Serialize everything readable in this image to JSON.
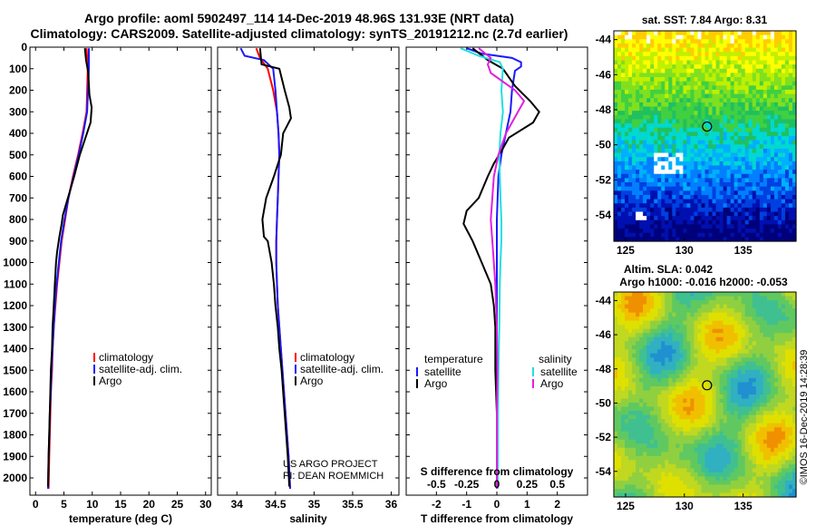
{
  "header": {
    "line1": "Argo profile: aoml 5902497_114 14-Dec-2019 48.96S 131.93E (NRT data)",
    "line2": "Climatology: CARS2009. Satellite-adjusted climatology: synTS_20191212.nc (2.7d earlier)"
  },
  "credit": {
    "line1": "US ARGO PROJECT",
    "line2": "PI: DEAN ROEMMICH",
    "watermark": "©IMOS 16-Dec-2019 14:28:39"
  },
  "colors": {
    "climatology": "#ff0000",
    "satellite": "#1a1aff",
    "argo": "#000000",
    "salinity_argo": "#e020e0",
    "salinity_sat": "#20e0e0"
  },
  "chart_data": [
    {
      "type": "line",
      "name": "temperature-panel",
      "xlabel": "temperature (deg C)",
      "xlim": [
        -1,
        31
      ],
      "ylim": [
        0,
        2080
      ],
      "y_reversed": true,
      "xticks": [
        0,
        5,
        10,
        15,
        20,
        25,
        30
      ],
      "yticks": [
        0,
        100,
        200,
        300,
        400,
        500,
        600,
        700,
        800,
        900,
        1000,
        1100,
        1200,
        1300,
        1400,
        1500,
        1600,
        1700,
        1800,
        1900,
        2000
      ],
      "legend": [
        "climatology",
        "satellite-adj. clim.",
        "Argo"
      ],
      "series": [
        {
          "name": "climatology",
          "color": "#ff0000",
          "points": [
            [
              9.0,
              5
            ],
            [
              9.2,
              100
            ],
            [
              9.0,
              300
            ],
            [
              8.3,
              400
            ],
            [
              7.5,
              500
            ],
            [
              6.6,
              600
            ],
            [
              5.8,
              700
            ],
            [
              5.2,
              800
            ],
            [
              4.6,
              900
            ],
            [
              4.2,
              1000
            ],
            [
              3.8,
              1100
            ],
            [
              3.5,
              1200
            ],
            [
              3.2,
              1300
            ],
            [
              3.0,
              1400
            ],
            [
              2.9,
              1500
            ],
            [
              2.7,
              1600
            ],
            [
              2.6,
              1700
            ],
            [
              2.5,
              1800
            ],
            [
              2.4,
              1900
            ],
            [
              2.3,
              2050
            ]
          ]
        },
        {
          "name": "satellite-adj. clim.",
          "color": "#1a1aff",
          "points": [
            [
              9.4,
              5
            ],
            [
              9.4,
              100
            ],
            [
              9.1,
              300
            ],
            [
              8.4,
              400
            ],
            [
              7.6,
              500
            ],
            [
              6.7,
              600
            ],
            [
              5.8,
              700
            ],
            [
              5.1,
              800
            ],
            [
              4.5,
              900
            ],
            [
              4.1,
              1000
            ],
            [
              3.7,
              1100
            ],
            [
              3.4,
              1200
            ],
            [
              3.2,
              1300
            ],
            [
              3.0,
              1400
            ],
            [
              2.8,
              1500
            ],
            [
              2.7,
              1600
            ],
            [
              2.5,
              1700
            ],
            [
              2.4,
              1800
            ],
            [
              2.3,
              1900
            ],
            [
              2.2,
              2050
            ]
          ]
        },
        {
          "name": "Argo",
          "color": "#000000",
          "points": [
            [
              8.7,
              5
            ],
            [
              8.9,
              60
            ],
            [
              9.3,
              120
            ],
            [
              9.5,
              220
            ],
            [
              9.9,
              280
            ],
            [
              9.7,
              350
            ],
            [
              8.8,
              420
            ],
            [
              7.8,
              500
            ],
            [
              6.8,
              600
            ],
            [
              5.7,
              700
            ],
            [
              4.8,
              780
            ],
            [
              4.6,
              820
            ],
            [
              4.2,
              880
            ],
            [
              3.8,
              950
            ],
            [
              3.6,
              1000
            ],
            [
              3.4,
              1100
            ],
            [
              3.2,
              1200
            ],
            [
              3.0,
              1300
            ],
            [
              2.9,
              1400
            ],
            [
              2.7,
              1500
            ],
            [
              2.6,
              1600
            ],
            [
              2.5,
              1700
            ],
            [
              2.4,
              1800
            ],
            [
              2.3,
              1900
            ],
            [
              2.2,
              2040
            ]
          ]
        }
      ]
    },
    {
      "type": "line",
      "name": "salinity-panel",
      "xlabel": "salinity",
      "xlim": [
        33.75,
        36.1
      ],
      "ylim": [
        0,
        2080
      ],
      "y_reversed": true,
      "xticks": [
        34,
        34.5,
        35,
        35.5,
        36
      ],
      "legend": [
        "climatology",
        "satellite-adj. clim.",
        "Argo"
      ],
      "series": [
        {
          "name": "climatology",
          "color": "#ff0000",
          "points": [
            [
              34.25,
              5
            ],
            [
              34.3,
              50
            ],
            [
              34.4,
              100
            ],
            [
              34.47,
              200
            ],
            [
              34.52,
              300
            ],
            [
              34.54,
              400
            ],
            [
              34.55,
              500
            ],
            [
              34.54,
              600
            ],
            [
              34.53,
              700
            ],
            [
              34.52,
              800
            ],
            [
              34.51,
              900
            ],
            [
              34.51,
              1000
            ],
            [
              34.52,
              1100
            ],
            [
              34.53,
              1200
            ],
            [
              34.55,
              1300
            ],
            [
              34.57,
              1400
            ],
            [
              34.59,
              1500
            ],
            [
              34.61,
              1600
            ],
            [
              34.63,
              1700
            ],
            [
              34.65,
              1800
            ],
            [
              34.67,
              1900
            ],
            [
              34.69,
              2050
            ]
          ]
        },
        {
          "name": "satellite-adj. clim.",
          "color": "#1a1aff",
          "points": [
            [
              34.05,
              5
            ],
            [
              34.1,
              40
            ],
            [
              34.35,
              60
            ],
            [
              34.47,
              100
            ],
            [
              34.5,
              200
            ],
            [
              34.52,
              300
            ],
            [
              34.54,
              400
            ],
            [
              34.55,
              500
            ],
            [
              34.54,
              600
            ],
            [
              34.53,
              700
            ],
            [
              34.52,
              800
            ],
            [
              34.51,
              900
            ],
            [
              34.51,
              1000
            ],
            [
              34.52,
              1100
            ],
            [
              34.53,
              1200
            ],
            [
              34.55,
              1300
            ],
            [
              34.57,
              1400
            ],
            [
              34.59,
              1500
            ],
            [
              34.61,
              1600
            ],
            [
              34.63,
              1700
            ],
            [
              34.65,
              1800
            ],
            [
              34.67,
              1900
            ],
            [
              34.69,
              2050
            ]
          ]
        },
        {
          "name": "Argo",
          "color": "#000000",
          "points": [
            [
              34.3,
              5
            ],
            [
              34.32,
              80
            ],
            [
              34.55,
              100
            ],
            [
              34.62,
              200
            ],
            [
              34.68,
              280
            ],
            [
              34.7,
              330
            ],
            [
              34.6,
              400
            ],
            [
              34.57,
              500
            ],
            [
              34.48,
              600
            ],
            [
              34.38,
              700
            ],
            [
              34.33,
              800
            ],
            [
              34.35,
              880
            ],
            [
              34.4,
              900
            ],
            [
              34.45,
              1000
            ],
            [
              34.48,
              1100
            ],
            [
              34.5,
              1200
            ],
            [
              34.53,
              1300
            ],
            [
              34.55,
              1400
            ],
            [
              34.58,
              1500
            ],
            [
              34.6,
              1600
            ],
            [
              34.62,
              1700
            ],
            [
              34.64,
              1800
            ],
            [
              34.66,
              1900
            ],
            [
              34.68,
              2040
            ]
          ]
        }
      ]
    },
    {
      "type": "line",
      "name": "difference-panel",
      "xlabel": "T difference from climatology",
      "xlabel2": "S difference from climatology",
      "xlim": [
        -3,
        3
      ],
      "ylim": [
        0,
        2080
      ],
      "y_reversed": true,
      "xticks": [
        -2,
        -1,
        0,
        1,
        2
      ],
      "xticks2": [
        "-0.5",
        "-0.25",
        "0",
        "0.25",
        "0.5"
      ],
      "legend": {
        "temperature_title": "temperature",
        "salinity_title": "salinity",
        "items": [
          "satellite",
          "Argo",
          "satellite",
          "Argo"
        ]
      },
      "series": [
        {
          "name": "temperature satellite",
          "color": "#1a1aff",
          "points": [
            [
              -1.0,
              5
            ],
            [
              -0.5,
              30
            ],
            [
              0.5,
              50
            ],
            [
              0.8,
              70
            ],
            [
              0.8,
              90
            ],
            [
              0.6,
              110
            ],
            [
              0.5,
              200
            ],
            [
              0.45,
              300
            ],
            [
              0.3,
              400
            ],
            [
              0.15,
              500
            ],
            [
              0.05,
              600
            ],
            [
              0.0,
              800
            ],
            [
              0.0,
              1000
            ],
            [
              0.0,
              1500
            ],
            [
              0.0,
              2050
            ]
          ]
        },
        {
          "name": "temperature Argo",
          "color": "#000000",
          "points": [
            [
              -0.8,
              5
            ],
            [
              -0.3,
              60
            ],
            [
              0.2,
              100
            ],
            [
              0.6,
              180
            ],
            [
              1.1,
              250
            ],
            [
              1.4,
              300
            ],
            [
              1.2,
              350
            ],
            [
              0.4,
              420
            ],
            [
              0.2,
              470
            ],
            [
              -0.1,
              540
            ],
            [
              -0.3,
              600
            ],
            [
              -0.6,
              700
            ],
            [
              -1.0,
              760
            ],
            [
              -1.1,
              820
            ],
            [
              -0.8,
              900
            ],
            [
              -0.5,
              1000
            ],
            [
              -0.2,
              1100
            ],
            [
              -0.1,
              1200
            ],
            [
              -0.05,
              1300
            ],
            [
              -0.05,
              1500
            ],
            [
              0.0,
              1700
            ],
            [
              0.0,
              2050
            ]
          ]
        },
        {
          "name": "salinity satellite",
          "color": "#20e0e0",
          "points": [
            [
              -1.2,
              5
            ],
            [
              -0.6,
              40
            ],
            [
              0.1,
              70
            ],
            [
              0.2,
              100
            ],
            [
              0.15,
              200
            ],
            [
              0.2,
              300
            ],
            [
              0.12,
              400
            ],
            [
              0.08,
              500
            ],
            [
              0.1,
              600
            ],
            [
              0.12,
              700
            ],
            [
              0.15,
              800
            ],
            [
              0.15,
              900
            ],
            [
              0.12,
              1000
            ],
            [
              0.1,
              1100
            ],
            [
              0.08,
              1300
            ],
            [
              0.05,
              1500
            ],
            [
              0.04,
              1700
            ],
            [
              0.03,
              2050
            ]
          ]
        },
        {
          "name": "salinity Argo",
          "color": "#e020e0",
          "points": [
            [
              -0.6,
              5
            ],
            [
              -0.2,
              50
            ],
            [
              -0.3,
              80
            ],
            [
              -0.2,
              120
            ],
            [
              0.6,
              200
            ],
            [
              0.9,
              250
            ],
            [
              0.7,
              300
            ],
            [
              0.3,
              400
            ],
            [
              0.05,
              500
            ],
            [
              -0.1,
              600
            ],
            [
              -0.15,
              700
            ],
            [
              -0.2,
              800
            ],
            [
              -0.15,
              900
            ],
            [
              -0.1,
              1000
            ],
            [
              -0.05,
              1100
            ],
            [
              0.0,
              1300
            ],
            [
              0.02,
              1500
            ],
            [
              0.0,
              1700
            ],
            [
              0.0,
              2050
            ]
          ]
        }
      ]
    },
    {
      "type": "heatmap",
      "name": "sst-map",
      "title": "sat. SST: 7.84 Argo: 8.31",
      "xlim": [
        124,
        139.5
      ],
      "ylim": [
        -55.5,
        -43.5
      ],
      "xticks": [
        125,
        130,
        135
      ],
      "yticks": [
        -44,
        -46,
        -48,
        -50,
        -52,
        -54
      ],
      "float_position": [
        131.93,
        -48.96
      ]
    },
    {
      "type": "heatmap",
      "name": "sla-map",
      "title": "Altim. SLA: 0.042",
      "subtitle": "Argo h1000: -0.016 h2000: -0.053",
      "xlim": [
        124,
        139.5
      ],
      "ylim": [
        -55.5,
        -43.5
      ],
      "xticks": [
        125,
        130,
        135
      ],
      "yticks": [
        -44,
        -46,
        -48,
        -50,
        -52,
        -54
      ],
      "float_position": [
        131.93,
        -48.96
      ]
    }
  ]
}
